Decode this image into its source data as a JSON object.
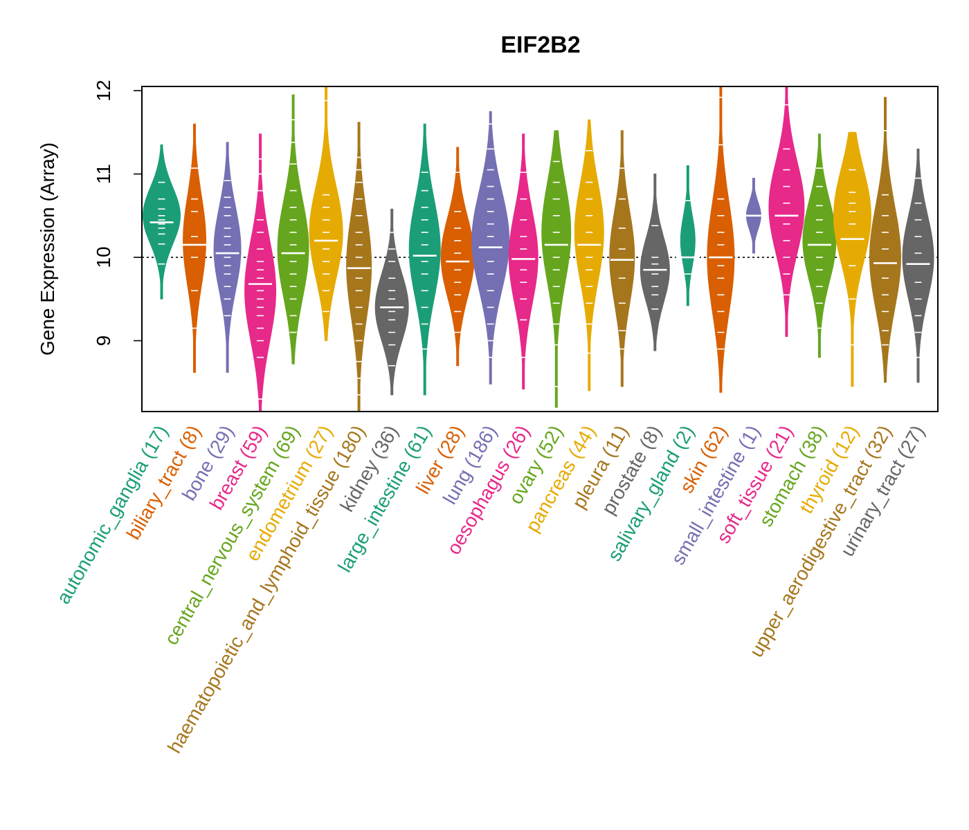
{
  "chart_data": {
    "type": "beanplot",
    "title": "EIF2B2",
    "xlabel": "",
    "ylabel": "Gene Expression (Array)",
    "ylim": [
      8.15,
      12.05
    ],
    "yticks": [
      9,
      10,
      11,
      12
    ],
    "reference_line": 10,
    "categories": [
      {
        "name": "autonomic_ganglia",
        "n": 17,
        "color": "#1B9E77",
        "median": 10.42,
        "min": 9.5,
        "max": 11.35,
        "peak": 10.5,
        "width": 0.9,
        "points": [
          9.92,
          10.16,
          10.28,
          10.35,
          10.4,
          10.45,
          10.5,
          10.58,
          10.7,
          10.9
        ]
      },
      {
        "name": "biliary_tract",
        "n": 8,
        "color": "#D95F02",
        "median": 10.15,
        "min": 8.62,
        "max": 11.6,
        "peak": 10.2,
        "width": 0.55,
        "points": [
          9.15,
          9.6,
          10.0,
          10.15,
          10.25,
          10.55,
          10.7,
          11.07
        ]
      },
      {
        "name": "bone",
        "n": 29,
        "color": "#7570B3",
        "median": 10.05,
        "min": 8.62,
        "max": 11.38,
        "peak": 10.1,
        "width": 0.65,
        "points": [
          9.3,
          9.5,
          9.65,
          9.8,
          9.9,
          10.0,
          10.05,
          10.15,
          10.25,
          10.35,
          10.5,
          10.6,
          10.72,
          10.92
        ]
      },
      {
        "name": "breast",
        "n": 59,
        "color": "#E7298A",
        "median": 9.68,
        "min": 8.15,
        "max": 11.48,
        "peak": 9.6,
        "width": 0.75,
        "points": [
          8.3,
          8.8,
          9.0,
          9.15,
          9.3,
          9.4,
          9.5,
          9.6,
          9.68,
          9.75,
          9.85,
          9.95,
          10.1,
          10.3,
          10.45,
          10.8,
          11.0,
          11.18
        ]
      },
      {
        "name": "central_nervous_system",
        "n": 69,
        "color": "#66A61E",
        "median": 10.05,
        "min": 8.72,
        "max": 11.95,
        "peak": 10.1,
        "width": 0.75,
        "points": [
          9.1,
          9.3,
          9.5,
          9.65,
          9.8,
          9.95,
          10.05,
          10.15,
          10.3,
          10.45,
          10.6,
          10.8,
          11.12,
          11.38,
          11.65
        ]
      },
      {
        "name": "endometrium",
        "n": 27,
        "color": "#E6AB02",
        "median": 10.2,
        "min": 9.0,
        "max": 12.05,
        "peak": 10.3,
        "width": 0.8,
        "points": [
          9.35,
          9.6,
          9.8,
          9.95,
          10.1,
          10.2,
          10.3,
          10.45,
          10.6,
          10.75,
          11.88
        ]
      },
      {
        "name": "haematopoietic_and_lymphoid_tissue",
        "n": 180,
        "color": "#A6761D",
        "median": 9.87,
        "min": 8.15,
        "max": 11.62,
        "peak": 9.9,
        "width": 0.6,
        "points": [
          8.35,
          8.55,
          8.75,
          9.0,
          9.2,
          9.4,
          9.6,
          9.75,
          9.87,
          10.0,
          10.15,
          10.3,
          10.5,
          10.7,
          10.9,
          11.05,
          11.2
        ]
      },
      {
        "name": "kidney",
        "n": 36,
        "color": "#666666",
        "median": 9.4,
        "min": 8.35,
        "max": 10.58,
        "peak": 9.4,
        "width": 0.8,
        "points": [
          8.7,
          8.95,
          9.1,
          9.25,
          9.35,
          9.4,
          9.5,
          9.6,
          9.75,
          9.95,
          10.1,
          10.3
        ]
      },
      {
        "name": "large_intestine",
        "n": 61,
        "color": "#1B9E77",
        "median": 10.02,
        "min": 8.35,
        "max": 11.6,
        "peak": 10.1,
        "width": 0.75,
        "points": [
          8.9,
          9.2,
          9.4,
          9.6,
          9.8,
          9.95,
          10.02,
          10.15,
          10.3,
          10.45,
          10.6,
          10.8,
          11.02
        ]
      },
      {
        "name": "liver",
        "n": 28,
        "color": "#D95F02",
        "median": 9.95,
        "min": 8.7,
        "max": 11.32,
        "peak": 10.0,
        "width": 0.8,
        "points": [
          9.1,
          9.35,
          9.55,
          9.7,
          9.85,
          9.95,
          10.05,
          10.2,
          10.35,
          10.55,
          11.02
        ]
      },
      {
        "name": "lung",
        "n": 186,
        "color": "#7570B3",
        "median": 10.12,
        "min": 8.48,
        "max": 11.75,
        "peak": 10.2,
        "width": 0.9,
        "points": [
          8.8,
          9.0,
          9.2,
          9.4,
          9.6,
          9.8,
          9.95,
          10.12,
          10.25,
          10.4,
          10.55,
          10.7,
          10.85,
          11.05,
          11.3,
          11.6
        ]
      },
      {
        "name": "oesophagus",
        "n": 26,
        "color": "#E7298A",
        "median": 9.98,
        "min": 8.42,
        "max": 11.48,
        "peak": 10.0,
        "width": 0.7,
        "points": [
          8.8,
          9.25,
          9.5,
          9.7,
          9.85,
          9.98,
          10.1,
          10.25,
          10.45,
          10.7,
          11.02
        ]
      },
      {
        "name": "ovary",
        "n": 52,
        "color": "#66A61E",
        "median": 10.15,
        "min": 8.2,
        "max": 11.52,
        "peak": 10.3,
        "width": 0.7,
        "points": [
          8.45,
          8.95,
          9.2,
          9.45,
          9.65,
          9.85,
          10.0,
          10.15,
          10.3,
          10.5,
          10.7,
          10.9,
          11.15
        ]
      },
      {
        "name": "pancreas",
        "n": 44,
        "color": "#E6AB02",
        "median": 10.15,
        "min": 8.4,
        "max": 11.65,
        "peak": 10.3,
        "width": 0.7,
        "points": [
          8.85,
          9.2,
          9.45,
          9.65,
          9.85,
          10.0,
          10.15,
          10.3,
          10.5,
          10.7,
          10.9,
          11.28
        ]
      },
      {
        "name": "pleura",
        "n": 11,
        "color": "#A6761D",
        "median": 9.97,
        "min": 8.45,
        "max": 11.52,
        "peak": 10.0,
        "width": 0.6,
        "points": [
          8.9,
          9.12,
          9.45,
          9.75,
          9.97,
          10.1,
          10.35,
          10.7,
          11.07
        ]
      },
      {
        "name": "prostate",
        "n": 8,
        "color": "#666666",
        "median": 9.85,
        "min": 8.88,
        "max": 11.0,
        "peak": 9.85,
        "width": 0.7,
        "points": [
          9.38,
          9.55,
          9.65,
          9.8,
          9.92,
          10.0,
          10.38
        ]
      },
      {
        "name": "salivary_gland",
        "n": 2,
        "color": "#1B9E77",
        "median": 10.0,
        "min": 9.42,
        "max": 11.1,
        "peak": 10.2,
        "width": 0.35,
        "points": [
          9.8,
          10.68
        ]
      },
      {
        "name": "skin",
        "n": 62,
        "color": "#D95F02",
        "median": 10.0,
        "min": 8.38,
        "max": 12.05,
        "peak": 10.0,
        "width": 0.65,
        "points": [
          8.9,
          9.1,
          9.35,
          9.55,
          9.75,
          9.9,
          10.0,
          10.15,
          10.3,
          10.5,
          10.7,
          11.35,
          11.92
        ]
      },
      {
        "name": "small_intestine",
        "n": 1,
        "color": "#7570B3",
        "median": 10.5,
        "min": 10.05,
        "max": 10.95,
        "peak": 10.5,
        "width": 0.35,
        "points": [
          10.5
        ]
      },
      {
        "name": "soft_tissue",
        "n": 21,
        "color": "#E7298A",
        "median": 10.5,
        "min": 9.05,
        "max": 12.05,
        "peak": 10.6,
        "width": 0.85,
        "points": [
          9.55,
          9.8,
          10.0,
          10.2,
          10.4,
          10.5,
          10.65,
          10.85,
          11.05,
          11.3,
          11.83
        ]
      },
      {
        "name": "stomach",
        "n": 38,
        "color": "#66A61E",
        "median": 10.15,
        "min": 8.8,
        "max": 11.48,
        "peak": 10.2,
        "width": 0.8,
        "points": [
          9.15,
          9.45,
          9.65,
          9.85,
          10.0,
          10.15,
          10.3,
          10.45,
          10.62,
          10.85,
          11.07
        ]
      },
      {
        "name": "thyroid",
        "n": 12,
        "color": "#E6AB02",
        "median": 10.22,
        "min": 8.45,
        "max": 11.5,
        "peak": 10.5,
        "width": 0.9,
        "points": [
          8.95,
          9.5,
          9.9,
          10.22,
          10.4,
          10.55,
          10.65,
          10.78,
          11.05
        ]
      },
      {
        "name": "upper_aerodigestive_tract",
        "n": 32,
        "color": "#A6761D",
        "median": 9.93,
        "min": 8.5,
        "max": 11.92,
        "peak": 10.0,
        "width": 0.75,
        "points": [
          8.95,
          9.12,
          9.35,
          9.55,
          9.75,
          9.93,
          10.1,
          10.3,
          10.5,
          10.75,
          11.52
        ]
      },
      {
        "name": "urinary_tract",
        "n": 27,
        "color": "#666666",
        "median": 9.92,
        "min": 8.5,
        "max": 11.3,
        "peak": 10.0,
        "width": 0.75,
        "points": [
          8.8,
          9.1,
          9.3,
          9.5,
          9.7,
          9.92,
          10.05,
          10.25,
          10.45,
          10.65,
          10.95
        ]
      }
    ]
  }
}
